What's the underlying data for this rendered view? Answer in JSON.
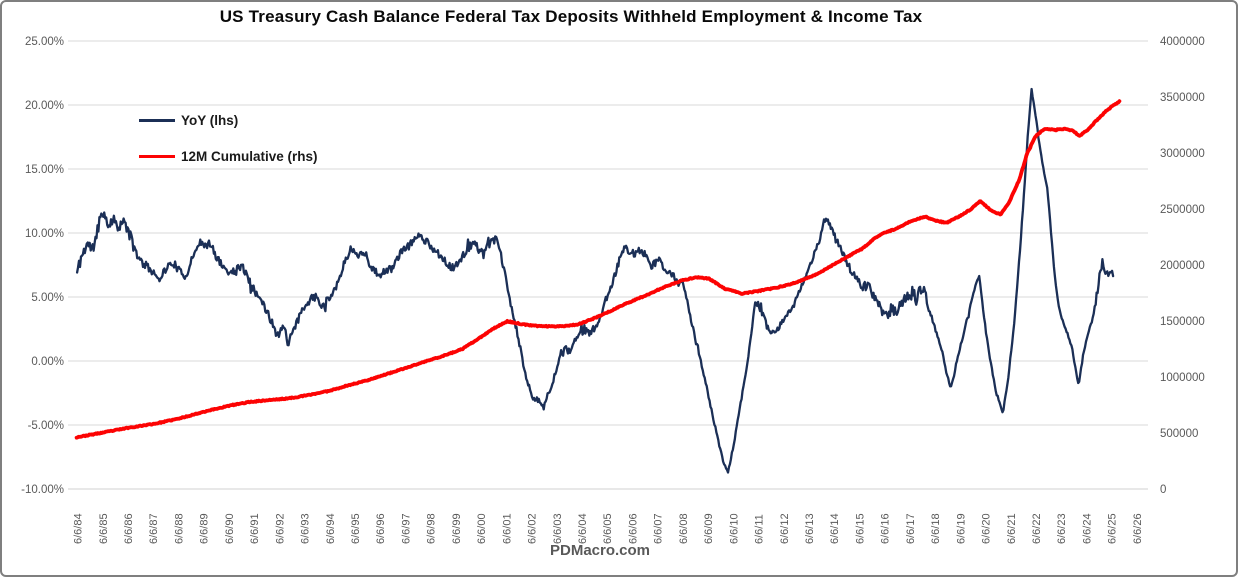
{
  "chart_data": {
    "type": "line",
    "title": "US Treasury Cash Balance Federal Tax Deposits Withheld Employment & Income Tax",
    "footer": "PDMacro.com",
    "grid": "horizontal",
    "legend_position": "upper-left-inside",
    "x_range": [
      1984.08,
      2026.9
    ],
    "x_tick_start_year": 1984.44,
    "x_tick_labels": [
      "6/6/84",
      "6/6/85",
      "6/6/86",
      "6/6/87",
      "6/6/88",
      "6/6/89",
      "6/6/90",
      "6/6/91",
      "6/6/92",
      "6/6/93",
      "6/6/94",
      "6/6/95",
      "6/6/96",
      "6/6/97",
      "6/6/98",
      "6/6/99",
      "6/6/00",
      "6/6/01",
      "6/6/02",
      "6/6/03",
      "6/6/04",
      "6/6/05",
      "6/6/06",
      "6/6/07",
      "6/6/08",
      "6/6/09",
      "6/6/10",
      "6/6/11",
      "6/6/12",
      "6/6/13",
      "6/6/14",
      "6/6/15",
      "6/6/16",
      "6/6/17",
      "6/6/18",
      "6/6/19",
      "6/6/20",
      "6/6/21",
      "6/6/22",
      "6/6/23",
      "6/6/24",
      "6/6/25",
      "6/6/26"
    ],
    "y_left": {
      "unit": "percent",
      "range": [
        -10,
        25
      ],
      "tick_labels": [
        "25.00%",
        "20.00%",
        "15.00%",
        "10.00%",
        "5.00%",
        "0.00%",
        "-5.00%",
        "-10.00%"
      ]
    },
    "y_right": {
      "unit": "value",
      "range": [
        0,
        4000000
      ],
      "tick_labels": [
        "4000000",
        "3500000",
        "3000000",
        "2500000",
        "2000000",
        "1500000",
        "1000000",
        "500000",
        "0"
      ]
    },
    "series": [
      {
        "name": "YoY (lhs)",
        "axis": "left",
        "color": "#1b2f56",
        "width": 2.3,
        "anchors": [
          [
            1984.44,
            6.9
          ],
          [
            1984.6,
            8.1
          ],
          [
            1984.85,
            9.2
          ],
          [
            1985.05,
            8.6
          ],
          [
            1985.25,
            10.3
          ],
          [
            1985.45,
            11.9
          ],
          [
            1985.65,
            10.6
          ],
          [
            1985.85,
            11.1
          ],
          [
            1986.1,
            10.6
          ],
          [
            1986.35,
            10.8
          ],
          [
            1986.6,
            9.4
          ],
          [
            1986.9,
            7.9
          ],
          [
            1987.2,
            7.4
          ],
          [
            1987.45,
            7.0
          ],
          [
            1987.7,
            6.5
          ],
          [
            1988.0,
            7.3
          ],
          [
            1988.25,
            7.7
          ],
          [
            1988.5,
            7.0
          ],
          [
            1988.75,
            6.6
          ],
          [
            1989.0,
            8.0
          ],
          [
            1989.3,
            9.4
          ],
          [
            1989.5,
            8.9
          ],
          [
            1989.7,
            9.2
          ],
          [
            1990.0,
            8.0
          ],
          [
            1990.25,
            7.3
          ],
          [
            1990.5,
            6.9
          ],
          [
            1990.75,
            7.1
          ],
          [
            1990.95,
            7.5
          ],
          [
            1991.2,
            6.6
          ],
          [
            1991.45,
            5.6
          ],
          [
            1991.7,
            4.8
          ],
          [
            1991.95,
            3.9
          ],
          [
            1992.2,
            2.9
          ],
          [
            1992.45,
            2.0
          ],
          [
            1992.65,
            2.9
          ],
          [
            1992.8,
            1.4
          ],
          [
            1993.0,
            2.2
          ],
          [
            1993.25,
            3.5
          ],
          [
            1993.5,
            4.3
          ],
          [
            1993.75,
            4.9
          ],
          [
            1993.95,
            5.1
          ],
          [
            1994.15,
            4.2
          ],
          [
            1994.4,
            4.9
          ],
          [
            1994.65,
            5.6
          ],
          [
            1994.9,
            6.8
          ],
          [
            1995.1,
            8.0
          ],
          [
            1995.3,
            8.8
          ],
          [
            1995.55,
            8.2
          ],
          [
            1995.75,
            8.6
          ],
          [
            1996.0,
            7.7
          ],
          [
            1996.2,
            7.1
          ],
          [
            1996.4,
            6.7
          ],
          [
            1996.65,
            7.0
          ],
          [
            1996.9,
            7.2
          ],
          [
            1997.15,
            8.1
          ],
          [
            1997.4,
            8.7
          ],
          [
            1997.65,
            9.1
          ],
          [
            1997.95,
            9.9
          ],
          [
            1998.2,
            9.5
          ],
          [
            1998.45,
            9.0
          ],
          [
            1998.7,
            8.5
          ],
          [
            1998.95,
            8.1
          ],
          [
            1999.2,
            7.4
          ],
          [
            1999.4,
            7.2
          ],
          [
            1999.65,
            8.0
          ],
          [
            1999.9,
            8.7
          ],
          [
            2000.15,
            9.3
          ],
          [
            2000.45,
            8.5
          ],
          [
            2000.75,
            9.0
          ],
          [
            2001.05,
            9.6
          ],
          [
            2001.3,
            7.8
          ],
          [
            2001.55,
            5.2
          ],
          [
            2001.8,
            3.0
          ],
          [
            2002.05,
            0.6
          ],
          [
            2002.3,
            -1.8
          ],
          [
            2002.55,
            -2.9
          ],
          [
            2002.8,
            -3.3
          ],
          [
            2002.95,
            -3.5
          ],
          [
            2003.15,
            -2.4
          ],
          [
            2003.4,
            -0.9
          ],
          [
            2003.6,
            0.2
          ],
          [
            2003.8,
            0.9
          ],
          [
            2004.0,
            0.6
          ],
          [
            2004.25,
            1.9
          ],
          [
            2004.5,
            2.5
          ],
          [
            2004.75,
            2.2
          ],
          [
            2005.0,
            2.6
          ],
          [
            2005.2,
            3.6
          ],
          [
            2005.45,
            5.0
          ],
          [
            2005.7,
            6.4
          ],
          [
            2005.95,
            8.0
          ],
          [
            2006.15,
            8.8
          ],
          [
            2006.35,
            8.6
          ],
          [
            2006.55,
            8.3
          ],
          [
            2006.75,
            8.7
          ],
          [
            2006.95,
            8.3
          ],
          [
            2007.15,
            7.4
          ],
          [
            2007.35,
            7.6
          ],
          [
            2007.55,
            7.9
          ],
          [
            2007.75,
            7.2
          ],
          [
            2007.95,
            7.0
          ],
          [
            2008.1,
            6.6
          ],
          [
            2008.3,
            6.0
          ],
          [
            2008.45,
            6.4
          ],
          [
            2008.7,
            3.9
          ],
          [
            2008.95,
            1.8
          ],
          [
            2009.2,
            -0.3
          ],
          [
            2009.45,
            -2.5
          ],
          [
            2009.7,
            -4.8
          ],
          [
            2009.95,
            -7.0
          ],
          [
            2010.15,
            -8.4
          ],
          [
            2010.25,
            -8.7
          ],
          [
            2010.45,
            -6.8
          ],
          [
            2010.7,
            -3.9
          ],
          [
            2010.95,
            -1.0
          ],
          [
            2011.15,
            1.8
          ],
          [
            2011.35,
            4.7
          ],
          [
            2011.55,
            4.0
          ],
          [
            2011.75,
            2.9
          ],
          [
            2012.0,
            2.2
          ],
          [
            2012.25,
            2.7
          ],
          [
            2012.5,
            3.4
          ],
          [
            2012.8,
            4.1
          ],
          [
            2013.1,
            5.6
          ],
          [
            2013.35,
            6.7
          ],
          [
            2013.6,
            8.0
          ],
          [
            2013.85,
            9.3
          ],
          [
            2014.05,
            10.9
          ],
          [
            2014.15,
            11.2
          ],
          [
            2014.4,
            10.0
          ],
          [
            2014.65,
            9.0
          ],
          [
            2014.9,
            8.0
          ],
          [
            2015.15,
            7.0
          ],
          [
            2015.4,
            6.2
          ],
          [
            2015.65,
            5.7
          ],
          [
            2015.85,
            6.0
          ],
          [
            2016.1,
            4.8
          ],
          [
            2016.4,
            3.9
          ],
          [
            2016.55,
            3.4
          ],
          [
            2016.7,
            4.0
          ],
          [
            2016.9,
            3.8
          ],
          [
            2017.1,
            4.6
          ],
          [
            2017.3,
            5.0
          ],
          [
            2017.55,
            5.3
          ],
          [
            2017.75,
            4.8
          ],
          [
            2017.95,
            5.9
          ],
          [
            2018.2,
            4.1
          ],
          [
            2018.45,
            2.7
          ],
          [
            2018.7,
            0.9
          ],
          [
            2018.95,
            -1.2
          ],
          [
            2019.1,
            -2.1
          ],
          [
            2019.3,
            -0.2
          ],
          [
            2019.55,
            1.8
          ],
          [
            2019.8,
            3.8
          ],
          [
            2020.0,
            5.5
          ],
          [
            2020.2,
            6.7
          ],
          [
            2020.4,
            3.5
          ],
          [
            2020.65,
            0.0
          ],
          [
            2020.9,
            -2.6
          ],
          [
            2021.15,
            -4.0
          ],
          [
            2021.35,
            -1.5
          ],
          [
            2021.6,
            3.0
          ],
          [
            2021.8,
            8.0
          ],
          [
            2022.0,
            13.5
          ],
          [
            2022.15,
            18.0
          ],
          [
            2022.28,
            21.3
          ],
          [
            2022.4,
            19.8
          ],
          [
            2022.6,
            16.8
          ],
          [
            2022.75,
            15.0
          ],
          [
            2022.9,
            13.6
          ],
          [
            2023.05,
            10.2
          ],
          [
            2023.2,
            6.8
          ],
          [
            2023.35,
            4.3
          ],
          [
            2023.55,
            2.9
          ],
          [
            2023.75,
            1.9
          ],
          [
            2023.9,
            0.9
          ],
          [
            2024.05,
            -0.9
          ],
          [
            2024.15,
            -1.9
          ],
          [
            2024.3,
            0.2
          ],
          [
            2024.5,
            2.0
          ],
          [
            2024.65,
            2.9
          ],
          [
            2024.8,
            4.2
          ],
          [
            2024.95,
            6.2
          ],
          [
            2025.1,
            7.9
          ],
          [
            2025.25,
            6.6
          ],
          [
            2025.4,
            7.0
          ],
          [
            2025.55,
            6.8
          ]
        ]
      },
      {
        "name": "12M Cumulative (rhs)",
        "axis": "right",
        "color": "#fc0303",
        "width": 3.8,
        "anchors": [
          [
            1984.42,
            462000
          ],
          [
            1985.5,
            505000
          ],
          [
            1986.5,
            548000
          ],
          [
            1987.5,
            582000
          ],
          [
            1988.5,
            630000
          ],
          [
            1989.5,
            692000
          ],
          [
            1990.5,
            745000
          ],
          [
            1991.3,
            778000
          ],
          [
            1992.1,
            795000
          ],
          [
            1992.8,
            808000
          ],
          [
            1993.6,
            838000
          ],
          [
            1994.4,
            875000
          ],
          [
            1995.1,
            920000
          ],
          [
            1995.9,
            968000
          ],
          [
            1996.6,
            1018000
          ],
          [
            1997.4,
            1075000
          ],
          [
            1998.2,
            1135000
          ],
          [
            1999.0,
            1192000
          ],
          [
            1999.7,
            1248000
          ],
          [
            2000.4,
            1348000
          ],
          [
            2001.0,
            1440000
          ],
          [
            2001.5,
            1497000
          ],
          [
            2002.0,
            1475000
          ],
          [
            2002.5,
            1458000
          ],
          [
            2003.2,
            1452000
          ],
          [
            2003.8,
            1456000
          ],
          [
            2004.3,
            1470000
          ],
          [
            2004.9,
            1520000
          ],
          [
            2005.5,
            1580000
          ],
          [
            2006.2,
            1655000
          ],
          [
            2007.0,
            1730000
          ],
          [
            2007.7,
            1800000
          ],
          [
            2008.4,
            1860000
          ],
          [
            2009.0,
            1892000
          ],
          [
            2009.5,
            1878000
          ],
          [
            2010.1,
            1790000
          ],
          [
            2010.8,
            1745000
          ],
          [
            2011.3,
            1762000
          ],
          [
            2012.0,
            1790000
          ],
          [
            2012.6,
            1820000
          ],
          [
            2013.2,
            1865000
          ],
          [
            2013.8,
            1922000
          ],
          [
            2014.4,
            2000000
          ],
          [
            2015.0,
            2075000
          ],
          [
            2015.6,
            2150000
          ],
          [
            2016.1,
            2245000
          ],
          [
            2016.5,
            2292000
          ],
          [
            2016.9,
            2322000
          ],
          [
            2017.5,
            2392000
          ],
          [
            2018.05,
            2432000
          ],
          [
            2018.5,
            2396000
          ],
          [
            2018.9,
            2376000
          ],
          [
            2019.4,
            2432000
          ],
          [
            2019.9,
            2502000
          ],
          [
            2020.25,
            2572000
          ],
          [
            2020.7,
            2482000
          ],
          [
            2021.05,
            2452000
          ],
          [
            2021.4,
            2562000
          ],
          [
            2021.8,
            2762000
          ],
          [
            2022.1,
            2992000
          ],
          [
            2022.45,
            3152000
          ],
          [
            2022.8,
            3215000
          ],
          [
            2023.2,
            3205000
          ],
          [
            2023.6,
            3216000
          ],
          [
            2023.95,
            3196000
          ],
          [
            2024.18,
            3150000
          ],
          [
            2024.5,
            3206000
          ],
          [
            2024.9,
            3300000
          ],
          [
            2025.2,
            3366000
          ],
          [
            2025.5,
            3422000
          ],
          [
            2025.78,
            3462000
          ]
        ]
      }
    ]
  },
  "colors": {
    "grid": "#d9d9d9",
    "axis_text": "#595959",
    "title_text": "#0a0a0a",
    "border": "#7f7f7f",
    "background": "#ffffff"
  }
}
